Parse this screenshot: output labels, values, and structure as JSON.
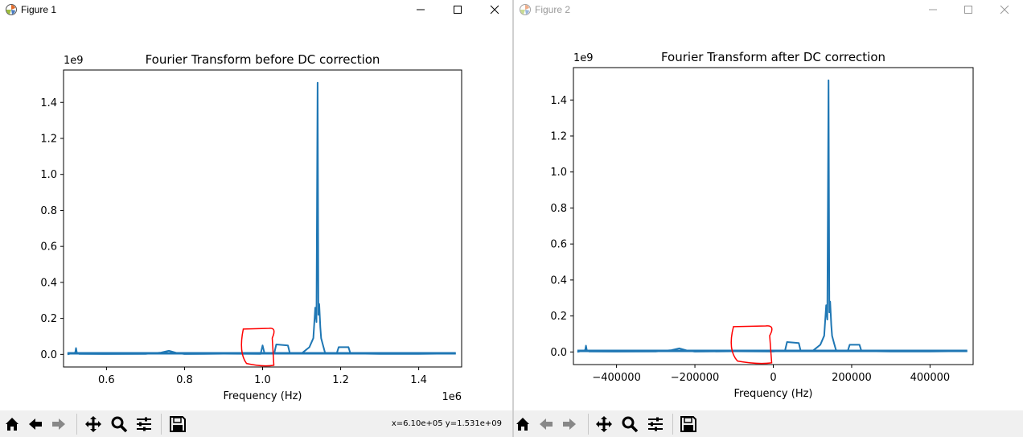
{
  "colors": {
    "line": "#1f77b4",
    "annotation": "#ff0000",
    "toolbar_bg": "#f0f0f0"
  },
  "windows": [
    {
      "title": "Figure 1",
      "active": true,
      "status": "x=6.10e+05 y=1.531e+09",
      "toolbar": [
        "home-icon",
        "back-arrow-icon",
        "forward-arrow-icon",
        "pan-icon",
        "zoom-icon",
        "configure-subplots-icon",
        "save-icon"
      ]
    },
    {
      "title": "Figure 2",
      "active": false,
      "status": "",
      "toolbar": [
        "home-icon",
        "back-arrow-icon",
        "forward-arrow-icon",
        "pan-icon",
        "zoom-icon",
        "configure-subplots-icon",
        "save-icon"
      ]
    }
  ],
  "chart_data": [
    {
      "type": "line",
      "title": "Fourier Transform before DC correction",
      "xlabel": "Frequency (Hz)",
      "ylabel": "",
      "x_offset_label": "1e6",
      "y_offset_label": "1e9",
      "xlim": [
        490000,
        1510000
      ],
      "ylim": [
        -70000000,
        1580000000
      ],
      "xticks": [
        600000,
        800000,
        1000000,
        1200000,
        1400000
      ],
      "xtick_labels": [
        "0.6",
        "0.8",
        "1.0",
        "1.2",
        "1.4"
      ],
      "yticks": [
        0,
        200000000,
        400000000,
        600000000,
        800000000,
        1000000000,
        1200000000,
        1400000000
      ],
      "ytick_labels": [
        "0.0",
        "0.2",
        "0.4",
        "0.6",
        "0.8",
        "1.0",
        "1.2",
        "1.4"
      ],
      "grid": false,
      "series": [
        {
          "x": [
            500000,
            510000,
            520000,
            522000,
            524000,
            530000,
            600000,
            700000,
            740000,
            760000,
            780000,
            800000,
            900000,
            995000,
            1000000,
            1005000,
            1030000,
            1035000,
            1065000,
            1070000,
            1100000,
            1120000,
            1130000,
            1135000,
            1138000,
            1141000,
            1143000,
            1145000,
            1148000,
            1150000,
            1155000,
            1160000,
            1170000,
            1190000,
            1195000,
            1220000,
            1225000,
            1300000,
            1400000,
            1495000
          ],
          "y": [
            0,
            5000000,
            10000000,
            35000000,
            10000000,
            3000000,
            2000000,
            3000000,
            10000000,
            20000000,
            8000000,
            2000000,
            4000000,
            3000000,
            50000000,
            5000000,
            8000000,
            55000000,
            50000000,
            5000000,
            5000000,
            40000000,
            90000000,
            260000000,
            180000000,
            1510000000,
            220000000,
            280000000,
            150000000,
            90000000,
            50000000,
            10000000,
            5000000,
            5000000,
            40000000,
            40000000,
            5000000,
            3000000,
            3000000,
            5000000
          ]
        }
      ]
    },
    {
      "type": "line",
      "title": "Fourier Transform after DC correction",
      "xlabel": "Frequency (Hz)",
      "ylabel": "",
      "x_offset_label": "",
      "y_offset_label": "1e9",
      "xlim": [
        -510000,
        510000
      ],
      "ylim": [
        -70000000,
        1580000000
      ],
      "xticks": [
        -400000,
        -200000,
        0,
        200000,
        400000
      ],
      "xtick_labels": [
        "−400000",
        "−200000",
        "0",
        "200000",
        "400000"
      ],
      "yticks": [
        0,
        200000000,
        400000000,
        600000000,
        800000000,
        1000000000,
        1200000000,
        1400000000
      ],
      "ytick_labels": [
        "0.0",
        "0.2",
        "0.4",
        "0.6",
        "0.8",
        "1.0",
        "1.2",
        "1.4"
      ],
      "grid": false,
      "series": [
        {
          "x": [
            -500000,
            -490000,
            -480000,
            -478000,
            -476000,
            -470000,
            -400000,
            -300000,
            -260000,
            -240000,
            -220000,
            -200000,
            -100000,
            -10000,
            0,
            10000,
            30000,
            35000,
            65000,
            70000,
            100000,
            120000,
            130000,
            135000,
            138000,
            141000,
            143000,
            145000,
            148000,
            150000,
            155000,
            160000,
            170000,
            190000,
            195000,
            220000,
            225000,
            300000,
            400000,
            495000
          ],
          "y": [
            0,
            5000000,
            10000000,
            35000000,
            10000000,
            3000000,
            2000000,
            3000000,
            10000000,
            20000000,
            8000000,
            2000000,
            4000000,
            3000000,
            3000000,
            5000000,
            8000000,
            55000000,
            50000000,
            5000000,
            5000000,
            40000000,
            90000000,
            260000000,
            180000000,
            1510000000,
            220000000,
            280000000,
            150000000,
            90000000,
            50000000,
            10000000,
            5000000,
            5000000,
            40000000,
            40000000,
            5000000,
            3000000,
            3000000,
            5000000
          ]
        }
      ]
    }
  ]
}
